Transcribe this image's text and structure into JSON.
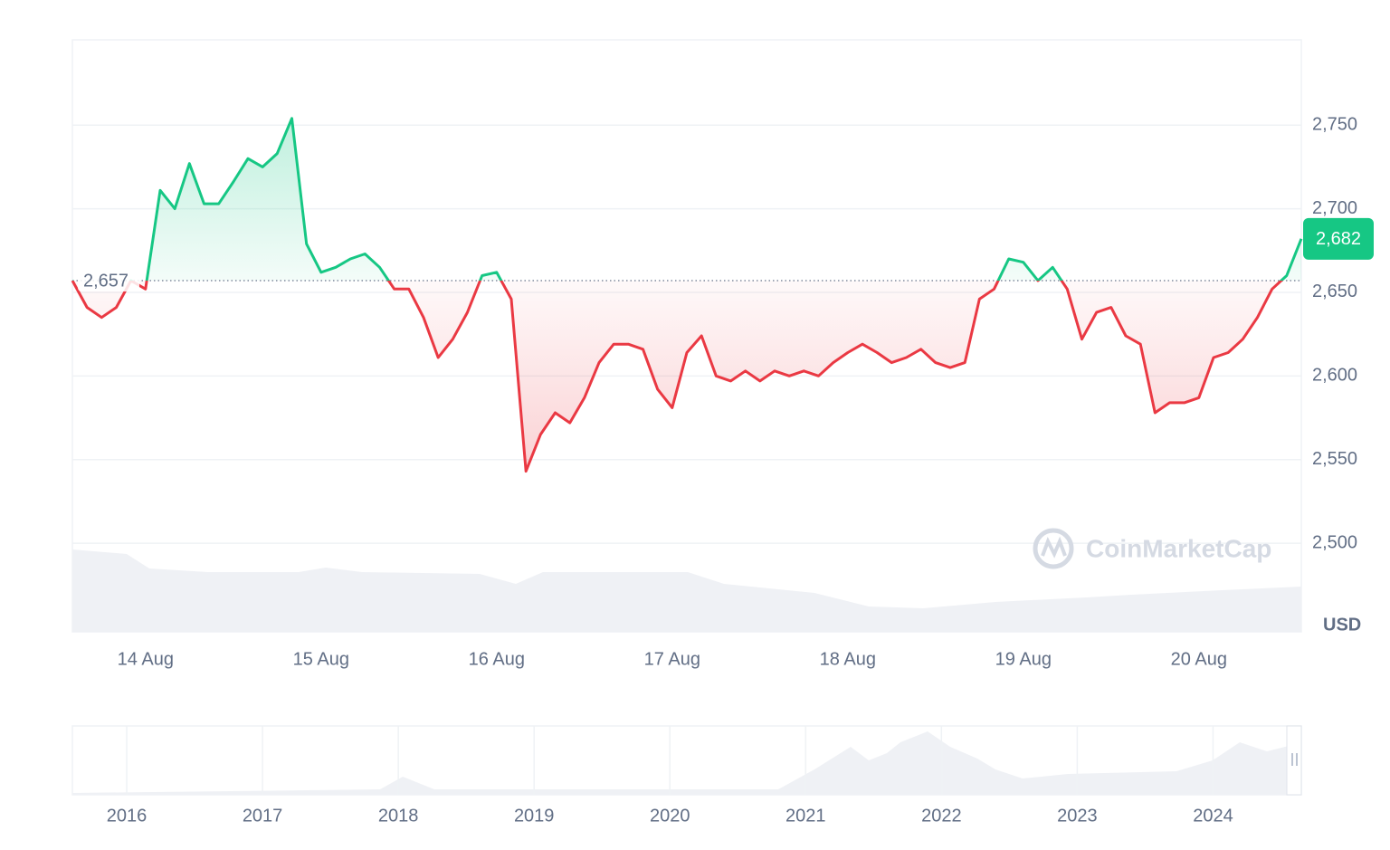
{
  "chart_data": {
    "type": "line",
    "categories": [
      null,
      null,
      null,
      null,
      null,
      "14 Aug",
      null,
      null,
      null,
      null,
      null,
      null,
      null,
      null,
      null,
      null,
      null,
      "15 Aug",
      null,
      null,
      null,
      null,
      null,
      null,
      null,
      null,
      null,
      null,
      null,
      "16 Aug",
      null,
      null,
      null,
      null,
      null,
      null,
      null,
      null,
      null,
      null,
      null,
      "17 Aug",
      null,
      null,
      null,
      null,
      null,
      null,
      null,
      null,
      null,
      null,
      null,
      "18 Aug",
      null,
      null,
      null,
      null,
      null,
      null,
      null,
      null,
      null,
      null,
      null,
      "19 Aug",
      null,
      null,
      null,
      null,
      null,
      null,
      null,
      null,
      null,
      null,
      null,
      "20 Aug",
      null,
      null,
      null,
      null,
      null,
      null,
      null
    ],
    "values": [
      2657,
      2641,
      2635,
      2641,
      2657,
      2652,
      2711,
      2700,
      2727,
      2703,
      2703,
      2716,
      2730,
      2725,
      2733,
      2754,
      2679,
      2662,
      2665,
      2670,
      2673,
      2665,
      2652,
      2652,
      2635,
      2611,
      2622,
      2638,
      2660,
      2662,
      2646,
      2543,
      2565,
      2578,
      2572,
      2587,
      2608,
      2619,
      2619,
      2616,
      2592,
      2581,
      2614,
      2624,
      2600,
      2597,
      2603,
      2597,
      2603,
      2600,
      2603,
      2600,
      2608,
      2614,
      2619,
      2614,
      2608,
      2611,
      2616,
      2608,
      2605,
      2608,
      2646,
      2652,
      2670,
      2668,
      2657,
      2665,
      2652,
      2622,
      2638,
      2641,
      2624,
      2619,
      2578,
      2584,
      2584,
      2587,
      2611,
      2614,
      2622,
      2635,
      2652,
      2660,
      2682
    ],
    "up_color": "#16c784",
    "down_color": "#ea3943",
    "ylim": [
      2447,
      2801
    ],
    "yticks": [
      {
        "value": 2500,
        "label": "2,500"
      },
      {
        "value": 2550,
        "label": "2,550"
      },
      {
        "value": 2600,
        "label": "2,600"
      },
      {
        "value": 2650,
        "label": "2,650"
      },
      {
        "value": 2700,
        "label": "2,700"
      },
      {
        "value": 2750,
        "label": "2,750"
      }
    ],
    "grid": true,
    "reference_price": {
      "value": 2657,
      "label": "2,657"
    },
    "current_price": {
      "value": 2682,
      "label": "2,682"
    },
    "currency": "USD",
    "watermark": "CoinMarketCap",
    "navigator_xlim": [
      2015.6,
      2024.65
    ],
    "navigator_xticks": [
      2016,
      2017,
      2018,
      2019,
      2020,
      2021,
      2022,
      2023,
      2024
    ]
  }
}
